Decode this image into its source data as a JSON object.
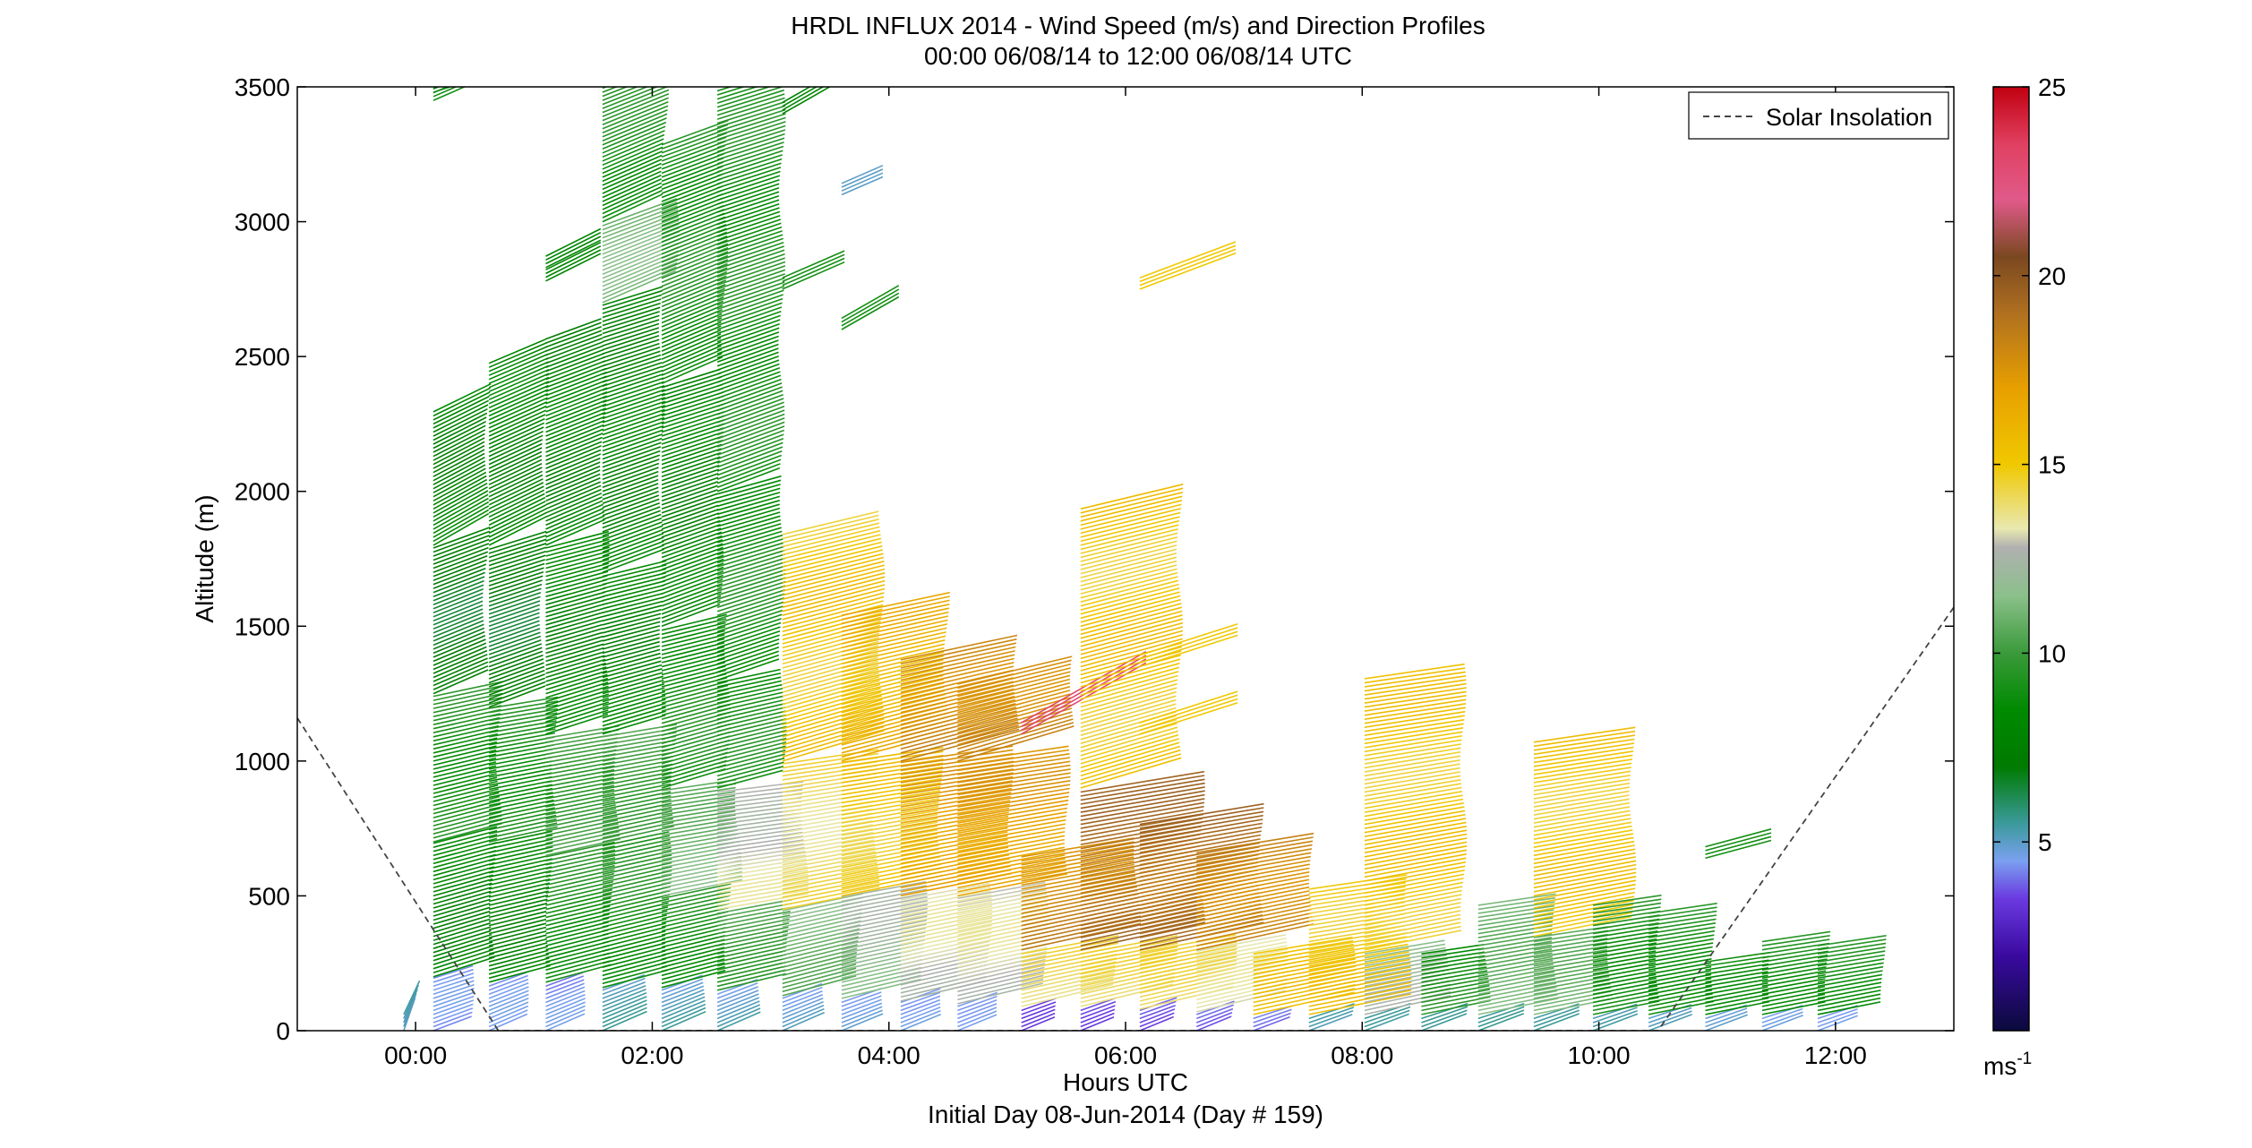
{
  "chart_data": {
    "type": "wind-barb-profile",
    "title": "HRDL INFLUX 2014 - Wind Speed (m/s) and Direction Profiles",
    "subtitle": "00:00 06/08/14 to 12:00 06/08/14  UTC",
    "xlabel": "Hours UTC",
    "xlabel2": "Initial Day 08-Jun-2014 (Day # 159)",
    "ylabel": "Altitude (m)",
    "xlim": [
      -1,
      13
    ],
    "ylim": [
      0,
      3500
    ],
    "x_ticks": [
      {
        "value": 0,
        "label": "00:00"
      },
      {
        "value": 2,
        "label": "02:00"
      },
      {
        "value": 4,
        "label": "04:00"
      },
      {
        "value": 6,
        "label": "06:00"
      },
      {
        "value": 8,
        "label": "08:00"
      },
      {
        "value": 10,
        "label": "10:00"
      },
      {
        "value": 12,
        "label": "12:00"
      }
    ],
    "y_ticks": [
      {
        "value": 0,
        "label": "0"
      },
      {
        "value": 500,
        "label": "500"
      },
      {
        "value": 1000,
        "label": "1000"
      },
      {
        "value": 1500,
        "label": "1500"
      },
      {
        "value": 2000,
        "label": "2000"
      },
      {
        "value": 2500,
        "label": "2500"
      },
      {
        "value": 3000,
        "label": "3000"
      },
      {
        "value": 3500,
        "label": "3500"
      }
    ],
    "legend": {
      "entries": [
        "Solar Insolation"
      ],
      "placement": "top-right"
    },
    "colorbar": {
      "range": [
        0,
        25
      ],
      "ticks": [
        {
          "value": 5,
          "label": "5"
        },
        {
          "value": 10,
          "label": "10"
        },
        {
          "value": 15,
          "label": "15"
        },
        {
          "value": 20,
          "label": "20"
        },
        {
          "value": 25,
          "label": "25"
        }
      ],
      "unit_label": "ms",
      "unit_exponent": "-1",
      "stops": [
        {
          "v": 0,
          "c": "#0a0a3c"
        },
        {
          "v": 2,
          "c": "#3a0aa0"
        },
        {
          "v": 3.5,
          "c": "#6a3ae0"
        },
        {
          "v": 4.5,
          "c": "#7aa0f0"
        },
        {
          "v": 5.5,
          "c": "#3a9a9a"
        },
        {
          "v": 7,
          "c": "#007a00"
        },
        {
          "v": 8.5,
          "c": "#008a00"
        },
        {
          "v": 10,
          "c": "#3a9a3a"
        },
        {
          "v": 11.5,
          "c": "#8ac08a"
        },
        {
          "v": 12.8,
          "c": "#b0b0b0"
        },
        {
          "v": 13.3,
          "c": "#e8e8b0"
        },
        {
          "v": 15,
          "c": "#f0c800"
        },
        {
          "v": 17,
          "c": "#e8a000"
        },
        {
          "v": 19,
          "c": "#b07020"
        },
        {
          "v": 20.5,
          "c": "#7a4820"
        },
        {
          "v": 22,
          "c": "#e05a8a"
        },
        {
          "v": 23.5,
          "c": "#e04060"
        },
        {
          "v": 25,
          "c": "#c00010"
        }
      ]
    },
    "solar_insolation": {
      "points": [
        [
          -1,
          1160
        ],
        [
          0.7,
          0
        ],
        [
          10.5,
          0
        ],
        [
          13,
          1570
        ]
      ]
    },
    "profiles": [
      {
        "t": -0.1,
        "top": 70,
        "segs": [
          [
            0,
            70,
            5,
            195
          ]
        ]
      },
      {
        "t": 0.15,
        "top": 2300,
        "segs": [
          [
            0,
            200,
            4,
            255
          ],
          [
            200,
            700,
            8,
            260
          ],
          [
            700,
            1250,
            9,
            265
          ],
          [
            1250,
            1800,
            7,
            250
          ],
          [
            1800,
            2300,
            8,
            240
          ]
        ],
        "extra": [
          [
            3450,
            9,
            250
          ],
          [
            3480,
            9,
            260
          ]
        ]
      },
      {
        "t": 0.62,
        "top": 2480,
        "segs": [
          [
            0,
            180,
            4,
            250
          ],
          [
            180,
            700,
            8,
            265
          ],
          [
            700,
            1200,
            9,
            270
          ],
          [
            1200,
            1800,
            7,
            255
          ],
          [
            1800,
            2480,
            8,
            245
          ]
        ]
      },
      {
        "t": 1.1,
        "top": 2580,
        "segs": [
          [
            0,
            180,
            4,
            250
          ],
          [
            180,
            650,
            9,
            265
          ],
          [
            650,
            1100,
            10,
            270
          ],
          [
            1100,
            1800,
            8,
            260
          ],
          [
            1800,
            2580,
            8,
            250
          ]
        ],
        "extra": [
          [
            2780,
            8,
            245
          ],
          [
            2830,
            8,
            245
          ]
        ]
      },
      {
        "t": 1.58,
        "top": 3500,
        "segs": [
          [
            0,
            160,
            5,
            250
          ],
          [
            160,
            700,
            9,
            265
          ],
          [
            700,
            1100,
            10,
            270
          ],
          [
            1100,
            1700,
            8,
            262
          ],
          [
            1700,
            2700,
            8,
            255
          ],
          [
            2700,
            3000,
            11,
            250
          ],
          [
            3000,
            3500,
            9,
            248
          ]
        ]
      },
      {
        "t": 2.08,
        "top": 3300,
        "segs": [
          [
            0,
            160,
            5,
            250
          ],
          [
            160,
            500,
            9,
            265
          ],
          [
            500,
            900,
            11,
            272
          ],
          [
            900,
            1500,
            9,
            262
          ],
          [
            1500,
            2400,
            8,
            255
          ],
          [
            2400,
            3300,
            9,
            250
          ]
        ]
      },
      {
        "t": 2.55,
        "top": 3500,
        "segs": [
          [
            0,
            150,
            5,
            250
          ],
          [
            150,
            450,
            10,
            268
          ],
          [
            450,
            900,
            13,
            275
          ],
          [
            900,
            1300,
            9,
            265
          ],
          [
            1300,
            2000,
            9,
            258
          ],
          [
            2000,
            3500,
            9,
            255
          ]
        ]
      },
      {
        "t": 3.1,
        "top": 1850,
        "segs": [
          [
            0,
            130,
            5,
            250
          ],
          [
            130,
            450,
            11,
            265
          ],
          [
            450,
            1000,
            14,
            272
          ],
          [
            1000,
            1850,
            15,
            262
          ]
        ],
        "extra": [
          [
            2750,
            9,
            250
          ],
          [
            3400,
            8,
            240
          ]
        ]
      },
      {
        "t": 3.6,
        "top": 1550,
        "segs": [
          [
            0,
            120,
            5,
            252
          ],
          [
            120,
            500,
            12,
            268
          ],
          [
            500,
            1000,
            15,
            272
          ],
          [
            1000,
            1550,
            16,
            265
          ]
        ],
        "extra": [
          [
            2600,
            9,
            240
          ],
          [
            3100,
            5,
            250
          ]
        ]
      },
      {
        "t": 4.1,
        "top": 1380,
        "segs": [
          [
            0,
            110,
            5,
            252
          ],
          [
            110,
            500,
            13,
            268
          ],
          [
            500,
            1000,
            17,
            272
          ],
          [
            1000,
            1380,
            18,
            265
          ]
        ]
      },
      {
        "t": 4.58,
        "top": 1300,
        "segs": [
          [
            0,
            100,
            5,
            252
          ],
          [
            100,
            500,
            13,
            268
          ],
          [
            500,
            1000,
            17,
            272
          ],
          [
            1000,
            1300,
            18,
            262
          ]
        ]
      },
      {
        "t": 5.12,
        "top": 660,
        "segs": [
          [
            0,
            90,
            4,
            252
          ],
          [
            90,
            300,
            14,
            268
          ],
          [
            300,
            660,
            18,
            270
          ]
        ],
        "extra": [
          [
            1100,
            23,
            240
          ]
        ]
      },
      {
        "t": 5.62,
        "top": 1950,
        "segs": [
          [
            0,
            90,
            4,
            252
          ],
          [
            90,
            300,
            14,
            268
          ],
          [
            300,
            900,
            19,
            270
          ],
          [
            900,
            1950,
            15,
            262
          ]
        ]
      },
      {
        "t": 6.12,
        "top": 780,
        "segs": [
          [
            0,
            80,
            4,
            252
          ],
          [
            80,
            300,
            14,
            268
          ],
          [
            300,
            780,
            19,
            270
          ]
        ],
        "extra": [
          [
            1100,
            15,
            260
          ],
          [
            1350,
            15,
            260
          ],
          [
            2750,
            15,
            255
          ]
        ]
      },
      {
        "t": 6.6,
        "top": 670,
        "segs": [
          [
            0,
            70,
            4,
            252
          ],
          [
            70,
            300,
            13,
            268
          ],
          [
            300,
            670,
            18,
            270
          ]
        ]
      },
      {
        "t": 7.08,
        "top": 300,
        "segs": [
          [
            0,
            60,
            4,
            255
          ],
          [
            60,
            300,
            15,
            270
          ]
        ]
      },
      {
        "t": 7.55,
        "top": 530,
        "segs": [
          [
            0,
            60,
            5,
            255
          ],
          [
            60,
            530,
            15,
            272
          ]
        ]
      },
      {
        "t": 8.02,
        "top": 1320,
        "segs": [
          [
            0,
            60,
            5,
            255
          ],
          [
            60,
            300,
            12,
            270
          ],
          [
            300,
            1320,
            15,
            272
          ]
        ]
      },
      {
        "t": 8.5,
        "top": 300,
        "segs": [
          [
            0,
            60,
            5,
            255
          ],
          [
            60,
            300,
            9,
            272
          ]
        ]
      },
      {
        "t": 8.98,
        "top": 470,
        "segs": [
          [
            0,
            60,
            5,
            255
          ],
          [
            60,
            470,
            11,
            272
          ]
        ]
      },
      {
        "t": 9.45,
        "top": 1080,
        "segs": [
          [
            0,
            60,
            5,
            255
          ],
          [
            60,
            350,
            11,
            272
          ],
          [
            350,
            1080,
            15,
            272
          ]
        ]
      },
      {
        "t": 9.95,
        "top": 470,
        "segs": [
          [
            0,
            60,
            5,
            255
          ],
          [
            60,
            470,
            9,
            272
          ]
        ]
      },
      {
        "t": 10.42,
        "top": 440,
        "segs": [
          [
            0,
            60,
            5,
            255
          ],
          [
            60,
            440,
            9,
            272
          ]
        ]
      },
      {
        "t": 10.9,
        "top": 260,
        "segs": [
          [
            0,
            60,
            5,
            255
          ],
          [
            60,
            260,
            9,
            272
          ]
        ],
        "extra": [
          [
            640,
            9,
            265
          ]
        ]
      },
      {
        "t": 11.38,
        "top": 340,
        "segs": [
          [
            0,
            60,
            5,
            255
          ],
          [
            60,
            340,
            9,
            272
          ]
        ]
      },
      {
        "t": 11.85,
        "top": 330,
        "segs": [
          [
            0,
            60,
            5,
            255
          ],
          [
            60,
            330,
            9,
            272
          ]
        ]
      }
    ]
  }
}
